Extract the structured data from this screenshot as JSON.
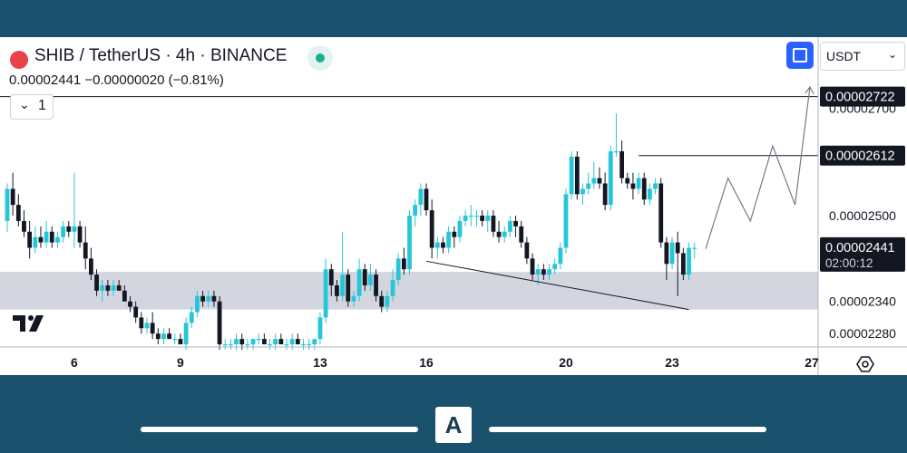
{
  "header": {
    "title": "SHIB / TetherUS · 4h · BINANCE",
    "values": "0.00002441  −0.00000020 (−0.81%)",
    "collapse_count": "1",
    "currency": "USDT"
  },
  "colors": {
    "up": "#26c6da",
    "down": "#131722",
    "zone": "#d1d4dc",
    "frame": "#1a526d",
    "accent": "#2962ff"
  },
  "icons": [
    "shib-logo-icon",
    "market-status-icon",
    "chevron-down-icon",
    "fullscreen-icon",
    "chevron-down-icon",
    "tradingview-logo-icon",
    "settings-icon",
    "brand-logo-icon"
  ],
  "brand_logo": "A",
  "chart_data": {
    "type": "candlestick",
    "symbol": "SHIB / TetherUS",
    "timeframe": "4h",
    "exchange": "BINANCE",
    "ylim": [
      2.255e-05,
      2.745e-05
    ],
    "y_ticks": [
      "0.00002700",
      "0.00002500",
      "0.00002340",
      "0.00002280"
    ],
    "x_ticks": [
      {
        "label": "6",
        "index": 12
      },
      {
        "label": "9",
        "index": 31
      },
      {
        "label": "13",
        "index": 56
      },
      {
        "label": "16",
        "index": 75
      },
      {
        "label": "20",
        "index": 100
      },
      {
        "label": "23",
        "index": 119
      },
      {
        "label": "27",
        "index": 144
      }
    ],
    "price_labels": [
      {
        "value": 2.722e-05,
        "text": "0.00002722"
      },
      {
        "value": 2.612e-05,
        "text": "0.00002612"
      },
      {
        "value": 2.441e-05,
        "text": "0.00002441",
        "sub": "02:00:12"
      }
    ],
    "candles": [
      [
        2.49e-05,
        2.56e-05,
        2.47e-05,
        2.55e-05
      ],
      [
        2.55e-05,
        2.58e-05,
        2.5e-05,
        2.52e-05
      ],
      [
        2.52e-05,
        2.54e-05,
        2.48e-05,
        2.49e-05
      ],
      [
        2.49e-05,
        2.51e-05,
        2.46e-05,
        2.47e-05
      ],
      [
        2.47e-05,
        2.49e-05,
        2.42e-05,
        2.44e-05
      ],
      [
        2.44e-05,
        2.48e-05,
        2.43e-05,
        2.46e-05
      ],
      [
        2.46e-05,
        2.48e-05,
        2.44e-05,
        2.45e-05
      ],
      [
        2.45e-05,
        2.49e-05,
        2.44e-05,
        2.47e-05
      ],
      [
        2.47e-05,
        2.48e-05,
        2.44e-05,
        2.45e-05
      ],
      [
        2.45e-05,
        2.47e-05,
        2.44e-05,
        2.46e-05
      ],
      [
        2.46e-05,
        2.49e-05,
        2.45e-05,
        2.48e-05
      ],
      [
        2.48e-05,
        2.49e-05,
        2.46e-05,
        2.47e-05
      ],
      [
        2.47e-05,
        2.58e-05,
        2.44e-05,
        2.48e-05
      ],
      [
        2.48e-05,
        2.49e-05,
        2.44e-05,
        2.45e-05
      ],
      [
        2.45e-05,
        2.48e-05,
        2.4e-05,
        2.42e-05
      ],
      [
        2.42e-05,
        2.44e-05,
        2.38e-05,
        2.39e-05
      ],
      [
        2.39e-05,
        2.4e-05,
        2.35e-05,
        2.36e-05
      ],
      [
        2.36e-05,
        2.38e-05,
        2.34e-05,
        2.37e-05
      ],
      [
        2.37e-05,
        2.38e-05,
        2.35e-05,
        2.36e-05
      ],
      [
        2.36e-05,
        2.38e-05,
        2.35e-05,
        2.37e-05
      ],
      [
        2.37e-05,
        2.38e-05,
        2.36e-05,
        2.36e-05
      ],
      [
        2.36e-05,
        2.37e-05,
        2.34e-05,
        2.34e-05
      ],
      [
        2.34e-05,
        2.35e-05,
        2.32e-05,
        2.33e-05
      ],
      [
        2.33e-05,
        2.34e-05,
        2.3e-05,
        2.31e-05
      ],
      [
        2.31e-05,
        2.32e-05,
        2.28e-05,
        2.29e-05
      ],
      [
        2.29e-05,
        2.31e-05,
        2.28e-05,
        2.3e-05
      ],
      [
        2.3e-05,
        2.32e-05,
        2.27e-05,
        2.28e-05
      ],
      [
        2.28e-05,
        2.29e-05,
        2.26e-05,
        2.27e-05
      ],
      [
        2.27e-05,
        2.29e-05,
        2.26e-05,
        2.28e-05
      ],
      [
        2.28e-05,
        2.29e-05,
        2.27e-05,
        2.27e-05
      ],
      [
        2.27e-05,
        2.28e-05,
        2.26e-05,
        2.27e-05
      ],
      [
        2.27e-05,
        2.28e-05,
        2.26e-05,
        2.26e-05
      ],
      [
        2.26e-05,
        2.31e-05,
        2.25e-05,
        2.3e-05
      ],
      [
        2.3e-05,
        2.33e-05,
        2.29e-05,
        2.32e-05
      ],
      [
        2.32e-05,
        2.36e-05,
        2.31e-05,
        2.35e-05
      ],
      [
        2.35e-05,
        2.36e-05,
        2.33e-05,
        2.34e-05
      ],
      [
        2.34e-05,
        2.36e-05,
        2.33e-05,
        2.35e-05
      ],
      [
        2.35e-05,
        2.36e-05,
        2.33e-05,
        2.34e-05
      ],
      [
        2.34e-05,
        2.35e-05,
        2.25e-05,
        2.26e-05
      ],
      [
        2.26e-05,
        2.27e-05,
        2.25e-05,
        2.26e-05
      ],
      [
        2.26e-05,
        2.27e-05,
        2.25e-05,
        2.26e-05
      ],
      [
        2.26e-05,
        2.28e-05,
        2.25e-05,
        2.27e-05
      ],
      [
        2.27e-05,
        2.28e-05,
        2.25e-05,
        2.26e-05
      ],
      [
        2.26e-05,
        2.27e-05,
        2.25e-05,
        2.26e-05
      ],
      [
        2.26e-05,
        2.27e-05,
        2.25e-05,
        2.27e-05
      ],
      [
        2.27e-05,
        2.28e-05,
        2.26e-05,
        2.27e-05
      ],
      [
        2.27e-05,
        2.28e-05,
        2.26e-05,
        2.26e-05
      ],
      [
        2.26e-05,
        2.27e-05,
        2.25e-05,
        2.26e-05
      ],
      [
        2.26e-05,
        2.28e-05,
        2.25e-05,
        2.27e-05
      ],
      [
        2.27e-05,
        2.28e-05,
        2.26e-05,
        2.26e-05
      ],
      [
        2.26e-05,
        2.27e-05,
        2.25e-05,
        2.26e-05
      ],
      [
        2.26e-05,
        2.28e-05,
        2.25e-05,
        2.27e-05
      ],
      [
        2.27e-05,
        2.28e-05,
        2.26e-05,
        2.26e-05
      ],
      [
        2.26e-05,
        2.27e-05,
        2.25e-05,
        2.26e-05
      ],
      [
        2.26e-05,
        2.27e-05,
        2.25e-05,
        2.26e-05
      ],
      [
        2.26e-05,
        2.27e-05,
        2.25e-05,
        2.27e-05
      ],
      [
        2.27e-05,
        2.32e-05,
        2.26e-05,
        2.31e-05
      ],
      [
        2.31e-05,
        2.42e-05,
        2.3e-05,
        2.4e-05
      ],
      [
        2.4e-05,
        2.41e-05,
        2.35e-05,
        2.37e-05
      ],
      [
        2.37e-05,
        2.38e-05,
        2.34e-05,
        2.35e-05
      ],
      [
        2.35e-05,
        2.47e-05,
        2.34e-05,
        2.39e-05
      ],
      [
        2.39e-05,
        2.4e-05,
        2.33e-05,
        2.34e-05
      ],
      [
        2.34e-05,
        2.36e-05,
        2.33e-05,
        2.35e-05
      ],
      [
        2.35e-05,
        2.42e-05,
        2.34e-05,
        2.4e-05
      ],
      [
        2.4e-05,
        2.41e-05,
        2.36e-05,
        2.37e-05
      ],
      [
        2.37e-05,
        2.41e-05,
        2.36e-05,
        2.39e-05
      ],
      [
        2.39e-05,
        2.4e-05,
        2.34e-05,
        2.35e-05
      ],
      [
        2.35e-05,
        2.36e-05,
        2.32e-05,
        2.33e-05
      ],
      [
        2.33e-05,
        2.36e-05,
        2.32e-05,
        2.35e-05
      ],
      [
        2.35e-05,
        2.4e-05,
        2.34e-05,
        2.38e-05
      ],
      [
        2.38e-05,
        2.43e-05,
        2.37e-05,
        2.42e-05
      ],
      [
        2.42e-05,
        2.44e-05,
        2.39e-05,
        2.4e-05
      ],
      [
        2.4e-05,
        2.51e-05,
        2.39e-05,
        2.5e-05
      ],
      [
        2.5e-05,
        2.53e-05,
        2.48e-05,
        2.52e-05
      ],
      [
        2.52e-05,
        2.56e-05,
        2.5e-05,
        2.55e-05
      ],
      [
        2.55e-05,
        2.56e-05,
        2.5e-05,
        2.51e-05
      ],
      [
        2.51e-05,
        2.53e-05,
        2.42e-05,
        2.44e-05
      ],
      [
        2.44e-05,
        2.46e-05,
        2.42e-05,
        2.45e-05
      ],
      [
        2.45e-05,
        2.46e-05,
        2.43e-05,
        2.44e-05
      ],
      [
        2.44e-05,
        2.48e-05,
        2.43e-05,
        2.47e-05
      ],
      [
        2.47e-05,
        2.48e-05,
        2.44e-05,
        2.46e-05
      ],
      [
        2.46e-05,
        2.5e-05,
        2.45e-05,
        2.49e-05
      ],
      [
        2.49e-05,
        2.51e-05,
        2.48e-05,
        2.5e-05
      ],
      [
        2.5e-05,
        2.52e-05,
        2.48e-05,
        2.5e-05
      ],
      [
        2.5e-05,
        2.51e-05,
        2.48e-05,
        2.5e-05
      ],
      [
        2.5e-05,
        2.51e-05,
        2.48e-05,
        2.49e-05
      ],
      [
        2.49e-05,
        2.51e-05,
        2.47e-05,
        2.5e-05
      ],
      [
        2.5e-05,
        2.51e-05,
        2.46e-05,
        2.47e-05
      ],
      [
        2.47e-05,
        2.49e-05,
        2.45e-05,
        2.46e-05
      ],
      [
        2.46e-05,
        2.48e-05,
        2.45e-05,
        2.47e-05
      ],
      [
        2.47e-05,
        2.5e-05,
        2.46e-05,
        2.49e-05
      ],
      [
        2.49e-05,
        2.5e-05,
        2.46e-05,
        2.48e-05
      ],
      [
        2.48e-05,
        2.49e-05,
        2.44e-05,
        2.45e-05
      ],
      [
        2.45e-05,
        2.46e-05,
        2.41e-05,
        2.42e-05
      ],
      [
        2.42e-05,
        2.43e-05,
        2.38e-05,
        2.39e-05
      ],
      [
        2.39e-05,
        2.41e-05,
        2.37e-05,
        2.4e-05
      ],
      [
        2.4e-05,
        2.41e-05,
        2.38e-05,
        2.39e-05
      ],
      [
        2.39e-05,
        2.41e-05,
        2.38e-05,
        2.4e-05
      ],
      [
        2.4e-05,
        2.42e-05,
        2.39e-05,
        2.41e-05
      ],
      [
        2.41e-05,
        2.45e-05,
        2.4e-05,
        2.44e-05
      ],
      [
        2.44e-05,
        2.55e-05,
        2.43e-05,
        2.54e-05
      ],
      [
        2.54e-05,
        2.62e-05,
        2.53e-05,
        2.61e-05
      ],
      [
        2.61e-05,
        2.62e-05,
        2.53e-05,
        2.54e-05
      ],
      [
        2.54e-05,
        2.56e-05,
        2.52e-05,
        2.55e-05
      ],
      [
        2.55e-05,
        2.58e-05,
        2.54e-05,
        2.56e-05
      ],
      [
        2.56e-05,
        2.6e-05,
        2.55e-05,
        2.57e-05
      ],
      [
        2.57e-05,
        2.59e-05,
        2.55e-05,
        2.56e-05
      ],
      [
        2.56e-05,
        2.58e-05,
        2.51e-05,
        2.52e-05
      ],
      [
        2.52e-05,
        2.63e-05,
        2.51e-05,
        2.62e-05
      ],
      [
        2.62e-05,
        2.69e-05,
        2.61e-05,
        2.62e-05
      ],
      [
        2.62e-05,
        2.64e-05,
        2.56e-05,
        2.57e-05
      ],
      [
        2.57e-05,
        2.58e-05,
        2.55e-05,
        2.56e-05
      ],
      [
        2.56e-05,
        2.58e-05,
        2.53e-05,
        2.55e-05
      ],
      [
        2.55e-05,
        2.58e-05,
        2.54e-05,
        2.57e-05
      ],
      [
        2.57e-05,
        2.58e-05,
        2.52e-05,
        2.53e-05
      ],
      [
        2.53e-05,
        2.56e-05,
        2.52e-05,
        2.55e-05
      ],
      [
        2.55e-05,
        2.57e-05,
        2.54e-05,
        2.56e-05
      ],
      [
        2.56e-05,
        2.57e-05,
        2.44e-05,
        2.45e-05
      ],
      [
        2.45e-05,
        2.46e-05,
        2.38e-05,
        2.41e-05
      ],
      [
        2.41e-05,
        2.46e-05,
        2.4e-05,
        2.45e-05
      ],
      [
        2.45e-05,
        2.47e-05,
        2.35e-05,
        2.43e-05
      ],
      [
        2.43e-05,
        2.44e-05,
        2.38e-05,
        2.39e-05
      ],
      [
        2.39e-05,
        2.45e-05,
        2.38e-05,
        2.44e-05
      ],
      [
        2.44e-05,
        2.45e-05,
        2.42e-05,
        2.44e-05
      ]
    ],
    "annotations": [
      {
        "kind": "horizontal_line",
        "value": 2.722e-05
      },
      {
        "kind": "horizontal_line",
        "value": 2.612e-05
      },
      {
        "kind": "zone",
        "from": 2.325e-05,
        "to": 2.395e-05
      },
      {
        "kind": "trend_line",
        "from": [
          75,
          2.415e-05
        ],
        "to": [
          122,
          2.325e-05
        ]
      },
      {
        "kind": "projection_path",
        "points": [
          [
            125,
            2.438e-05
          ],
          [
            129,
            2.57e-05
          ],
          [
            133,
            2.49e-05
          ],
          [
            137,
            2.63e-05
          ],
          [
            141,
            2.52e-05
          ],
          [
            145,
            2.74e-05
          ]
        ]
      }
    ]
  }
}
